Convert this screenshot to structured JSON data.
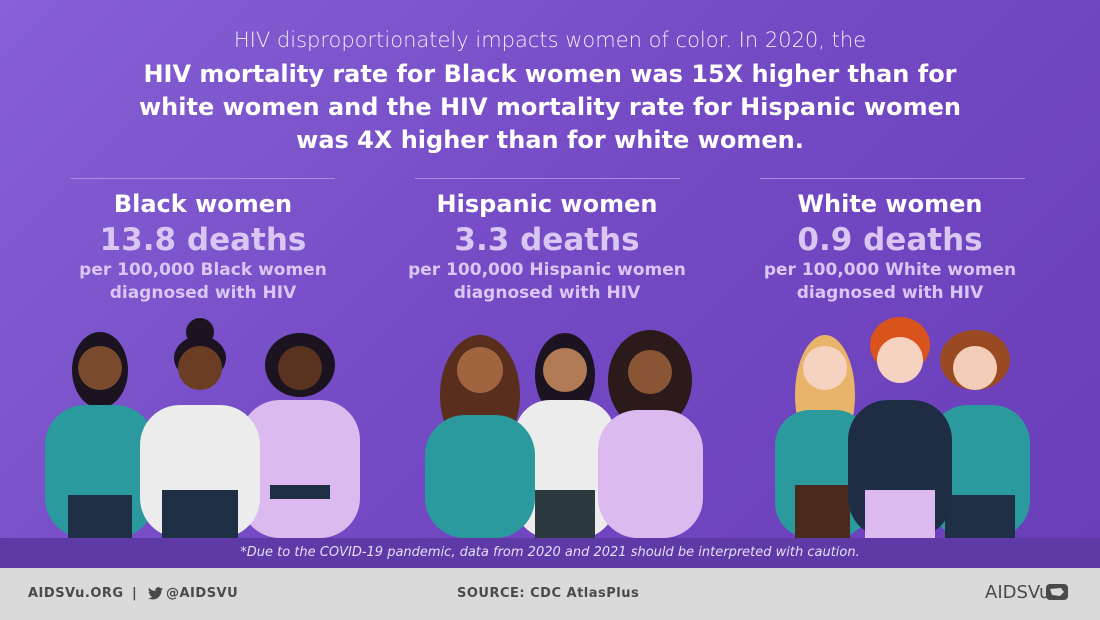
{
  "intro": "HIV disproportionately impacts women of color. In 2020, the",
  "headline": [
    "HIV mortality rate for Black women was 15X higher than for",
    "white women and the HIV mortality rate for Hispanic women",
    "was 4X higher than for white women."
  ],
  "groups": [
    {
      "title": "Black women",
      "stat": "13.8 deaths",
      "sub": [
        "per 100,000 Black women",
        "diagnosed with HIV"
      ]
    },
    {
      "title": "Hispanic women",
      "stat": "3.3 deaths",
      "sub": [
        "per 100,000 Hispanic women",
        "diagnosed with HIV"
      ]
    },
    {
      "title": "White women",
      "stat": "0.9 deaths",
      "sub": [
        "per 100,000 White women",
        "diagnosed with HIV"
      ]
    }
  ],
  "footnote": "*Due to the COVID-19 pandemic, data from 2020 and 2021 should be interpreted with caution.",
  "footer": {
    "site": "AIDSVu.ORG",
    "separator": "|",
    "handle": "@AIDSVU",
    "source": "SOURCE: CDC AtlasPlus",
    "logo": "AIDSVu"
  }
}
